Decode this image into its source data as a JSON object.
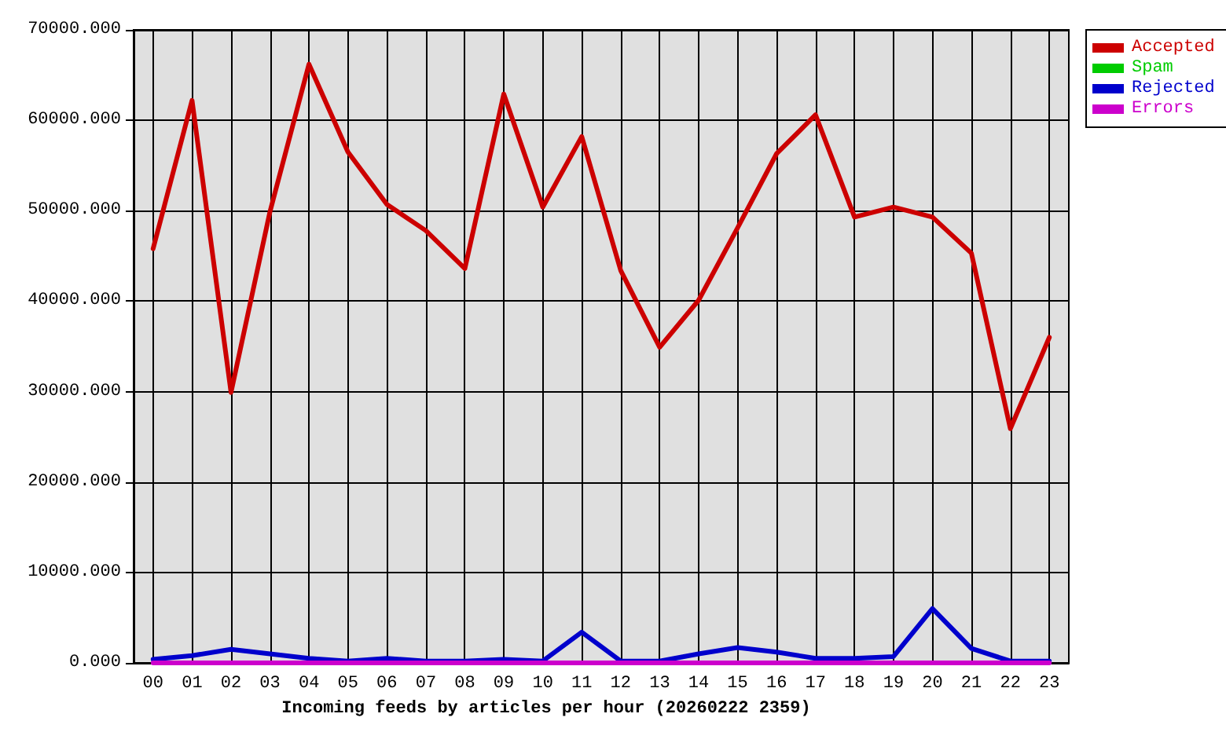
{
  "chart_data": {
    "type": "line",
    "xlabel": "Incoming feeds by articles per hour (20260222 2359)",
    "categories": [
      "00",
      "01",
      "02",
      "03",
      "04",
      "05",
      "06",
      "07",
      "08",
      "09",
      "10",
      "11",
      "12",
      "13",
      "14",
      "15",
      "16",
      "17",
      "18",
      "19",
      "20",
      "21",
      "22",
      "23"
    ],
    "series": [
      {
        "name": "Accepted",
        "color": "#cc0000",
        "values": [
          45800,
          62200,
          29900,
          49900,
          66200,
          56500,
          50700,
          47800,
          43600,
          62900,
          50400,
          58200,
          43400,
          34900,
          40100,
          48100,
          56300,
          60600,
          49300,
          50400,
          49300,
          45300,
          25900,
          36000
        ]
      },
      {
        "name": "Spam",
        "color": "#00cc00",
        "values": [
          null,
          null,
          null,
          null,
          null,
          null,
          null,
          null,
          null,
          null,
          null,
          null,
          null,
          null,
          null,
          null,
          null,
          null,
          null,
          null,
          null,
          null,
          null,
          null
        ]
      },
      {
        "name": "Rejected",
        "color": "#0000cc",
        "values": [
          400,
          800,
          1500,
          1000,
          500,
          200,
          500,
          200,
          200,
          400,
          200,
          3400,
          200,
          200,
          1000,
          1700,
          1200,
          500,
          500,
          700,
          6000,
          1600,
          200,
          200
        ]
      },
      {
        "name": "Errors",
        "color": "#cc00cc",
        "values": [
          0,
          0,
          0,
          0,
          0,
          0,
          0,
          0,
          0,
          0,
          0,
          0,
          0,
          0,
          0,
          0,
          0,
          0,
          0,
          0,
          0,
          0,
          0,
          0
        ]
      }
    ],
    "ylim": [
      0,
      70000
    ],
    "yticks": [
      {
        "value": 0,
        "label": "0.000"
      },
      {
        "value": 10000,
        "label": "10000.000"
      },
      {
        "value": 20000,
        "label": "20000.000"
      },
      {
        "value": 30000,
        "label": "30000.000"
      },
      {
        "value": 40000,
        "label": "40000.000"
      },
      {
        "value": 50000,
        "label": "50000.000"
      },
      {
        "value": 60000,
        "label": "60000.000"
      },
      {
        "value": 70000,
        "label": "70000.000"
      }
    ],
    "grid": true,
    "legend": "right",
    "marker": "none",
    "line_style": "solid"
  }
}
